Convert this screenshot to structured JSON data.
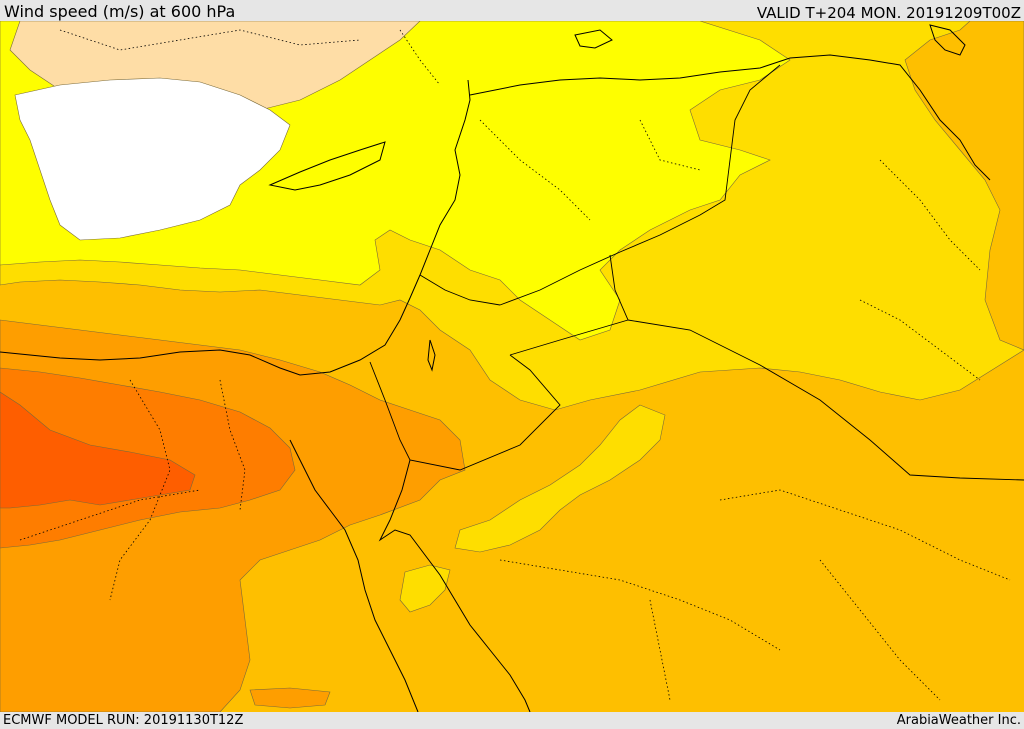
{
  "header": {
    "title": "Wind speed (m/s) at 600 hPa",
    "valid": "VALID T+204 MON. 20191209T00Z"
  },
  "footer": {
    "model_run": "ECMWF MODEL RUN: 20191130T12Z",
    "credit": "ArabiaWeather Inc."
  },
  "colors": {
    "calm": "#ffffff",
    "very_light": "#fedda6",
    "light": "#fefe00",
    "light_moderate": "#fede00",
    "moderate": "#febf00",
    "moderate_strong": "#fe9e00",
    "strong": "#fe7d00",
    "very_strong": "#fe5e00"
  }
}
